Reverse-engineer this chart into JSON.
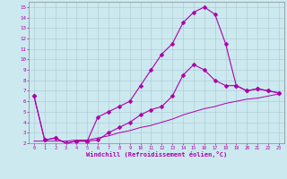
{
  "xlabel": "Windchill (Refroidissement éolien,°C)",
  "xlim": [
    -0.5,
    23.5
  ],
  "ylim": [
    2,
    15.5
  ],
  "xticks": [
    0,
    1,
    2,
    3,
    4,
    5,
    6,
    7,
    8,
    9,
    10,
    11,
    12,
    13,
    14,
    15,
    16,
    17,
    18,
    19,
    20,
    21,
    22,
    23
  ],
  "yticks": [
    2,
    3,
    4,
    5,
    6,
    7,
    8,
    9,
    10,
    11,
    12,
    13,
    14,
    15
  ],
  "background_color": "#cce9f0",
  "grid_color": "#aac8d0",
  "line_color": "#aa00aa",
  "curve1_x": [
    0,
    1,
    2,
    3,
    4,
    5,
    6,
    7,
    8,
    9,
    10,
    11,
    12,
    13,
    14,
    15,
    16,
    17,
    18,
    19,
    20,
    21,
    22,
    23
  ],
  "curve1_y": [
    6.5,
    2.3,
    2.5,
    2.0,
    2.2,
    2.2,
    4.5,
    5.0,
    5.5,
    6.0,
    7.5,
    9.0,
    10.5,
    11.5,
    13.5,
    14.5,
    15.0,
    14.3,
    11.5,
    7.5,
    7.0,
    7.2,
    7.0,
    6.8
  ],
  "curve2_x": [
    0,
    1,
    2,
    3,
    4,
    5,
    6,
    7,
    8,
    9,
    10,
    11,
    12,
    13,
    14,
    15,
    16,
    17,
    18,
    19,
    20,
    21,
    22,
    23
  ],
  "curve2_y": [
    6.5,
    2.3,
    2.5,
    2.0,
    2.2,
    2.2,
    2.3,
    3.0,
    3.5,
    4.0,
    4.7,
    5.2,
    5.5,
    6.5,
    8.5,
    9.5,
    9.0,
    8.0,
    7.5,
    7.5,
    7.0,
    7.2,
    7.0,
    6.8
  ],
  "curve3_x": [
    0,
    1,
    2,
    3,
    4,
    5,
    6,
    7,
    8,
    9,
    10,
    11,
    12,
    13,
    14,
    15,
    16,
    17,
    18,
    19,
    20,
    21,
    22,
    23
  ],
  "curve3_y": [
    2.2,
    2.2,
    2.2,
    2.2,
    2.3,
    2.3,
    2.5,
    2.7,
    3.0,
    3.2,
    3.5,
    3.7,
    4.0,
    4.3,
    4.7,
    5.0,
    5.3,
    5.5,
    5.8,
    6.0,
    6.2,
    6.3,
    6.5,
    6.7
  ]
}
